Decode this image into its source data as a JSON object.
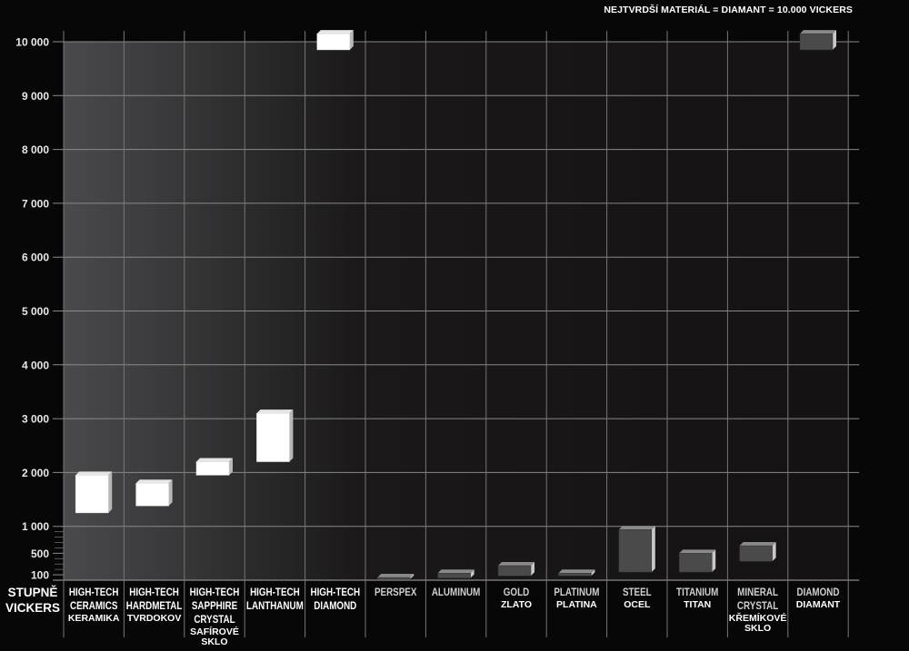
{
  "chart_data": {
    "type": "bar",
    "subtype": "floating-range-3d",
    "title": "NEJTVRDŠÍ MATERIÁL = DIAMANT = 10.000 VICKERS",
    "ylabel": [
      "STUPNĚ",
      "VICKERS"
    ],
    "ylim": [
      0,
      10000
    ],
    "yticks": [
      100,
      500,
      1000,
      2000,
      3000,
      4000,
      5000,
      6000,
      7000,
      8000,
      9000,
      10000
    ],
    "ytick_labels": [
      "100",
      "500",
      "1 000",
      "2 000",
      "3 000",
      "4 000",
      "5 000",
      "6 000",
      "7 000",
      "8 000",
      "9 000",
      "10 000"
    ],
    "grid": true,
    "colors": {
      "high_tech": "#ffffff",
      "conventional": "#4a4a4a",
      "background_left": "#4a4a4d",
      "background_right": "#141212",
      "grid": "#8a8a8a"
    },
    "categories": [
      {
        "label": [
          "HIGH-TECH",
          "CERAMICS"
        ],
        "sublabel": [
          "KERAMIKA"
        ],
        "min": 1250,
        "max": 1950,
        "group": "high_tech"
      },
      {
        "label": [
          "HIGH-TECH",
          "HARDMETAL"
        ],
        "sublabel": [
          "TVRDOKOV"
        ],
        "min": 1380,
        "max": 1800,
        "group": "high_tech"
      },
      {
        "label": [
          "HIGH-TECH",
          "SAPPHIRE",
          "CRYSTAL"
        ],
        "sublabel": [
          "SAFÍROVÉ",
          "SKLO"
        ],
        "min": 1950,
        "max": 2200,
        "group": "high_tech"
      },
      {
        "label": [
          "HIGH-TECH",
          "LANTHANUM"
        ],
        "sublabel": [],
        "min": 2200,
        "max": 3100,
        "group": "high_tech"
      },
      {
        "label": [
          "HIGH-TECH",
          "DIAMOND"
        ],
        "sublabel": [],
        "min": 9850,
        "max": 10150,
        "group": "high_tech"
      },
      {
        "label": [
          "PERSPEX"
        ],
        "sublabel": [],
        "min": 20,
        "max": 50,
        "group": "conventional"
      },
      {
        "label": [
          "ALUMINUM"
        ],
        "sublabel": [],
        "min": 40,
        "max": 130,
        "group": "conventional"
      },
      {
        "label": [
          "GOLD"
        ],
        "sublabel": [
          "ZLATO"
        ],
        "min": 80,
        "max": 270,
        "group": "conventional"
      },
      {
        "label": [
          "PLATINUM"
        ],
        "sublabel": [
          "PLATINA"
        ],
        "min": 80,
        "max": 130,
        "group": "conventional"
      },
      {
        "label": [
          "STEEL"
        ],
        "sublabel": [
          "OCEL"
        ],
        "min": 150,
        "max": 940,
        "group": "conventional"
      },
      {
        "label": [
          "TITANIUM"
        ],
        "sublabel": [
          "TITAN"
        ],
        "min": 150,
        "max": 500,
        "group": "conventional"
      },
      {
        "label": [
          "MINERAL",
          "CRYSTAL"
        ],
        "sublabel": [
          "KŘEMÍKOVÉ",
          "SKLO"
        ],
        "min": 350,
        "max": 640,
        "group": "conventional"
      },
      {
        "label": [
          "DIAMOND"
        ],
        "sublabel": [
          "DIAMANT"
        ],
        "min": 9850,
        "max": 10150,
        "group": "conventional"
      }
    ]
  }
}
